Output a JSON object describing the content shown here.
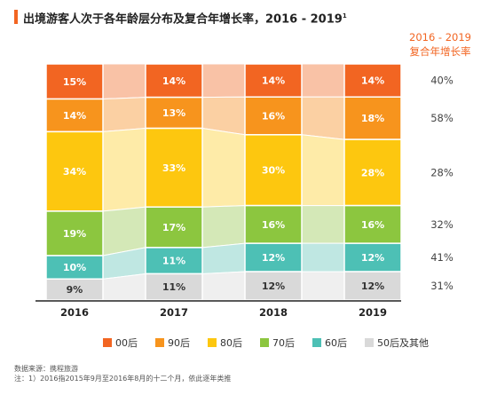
{
  "title": "出境游客人次于各年龄层分布及复合年增长率，2016 - 2019",
  "title_sup": "1",
  "cagr_header": [
    "2016 - 2019",
    "复合年增长率"
  ],
  "footnote": {
    "source": "数据来源：携程旅游",
    "note": "注：1）2016指2015年9月至2016年8月的十二个月，依此逐年类推"
  },
  "chart_data": {
    "type": "bar",
    "stacked": true,
    "percent_stacked": true,
    "categories": [
      "2016",
      "2017",
      "2018",
      "2019"
    ],
    "series": [
      {
        "name": "00后",
        "color": "#f26522",
        "light": "#f9c2a6",
        "values": [
          15,
          14,
          14,
          14
        ],
        "labels": [
          "15%",
          "14%",
          "14%",
          "14%"
        ],
        "cagr": "40%"
      },
      {
        "name": "90后",
        "color": "#f7941d",
        "light": "#fbd0a3",
        "values": [
          14,
          13,
          16,
          18
        ],
        "labels": [
          "14%",
          "13%",
          "16%",
          "18%"
        ],
        "cagr": "58%"
      },
      {
        "name": "80后",
        "color": "#fdc70f",
        "light": "#feeba8",
        "values": [
          34,
          33,
          30,
          28
        ],
        "labels": [
          "34%",
          "33%",
          "30%",
          "28%"
        ],
        "cagr": "28%"
      },
      {
        "name": "70后",
        "color": "#8cc63f",
        "light": "#d4e8b7",
        "values": [
          19,
          17,
          16,
          16
        ],
        "labels": [
          "19%",
          "17%",
          "16%",
          "16%"
        ],
        "cagr": "32%"
      },
      {
        "name": "60后",
        "color": "#4dc0b5",
        "light": "#bfe7e2",
        "values": [
          10,
          11,
          12,
          12
        ],
        "labels": [
          "10%",
          "11%",
          "12%",
          "12%"
        ],
        "cagr": "41%"
      },
      {
        "name": "50后及其他",
        "color": "#d9d9d9",
        "light": "#efefef",
        "values": [
          9,
          11,
          12,
          12
        ],
        "labels": [
          "9%",
          "11%",
          "12%",
          "12%"
        ],
        "cagr": "31%"
      }
    ],
    "legend_position": "bottom"
  }
}
